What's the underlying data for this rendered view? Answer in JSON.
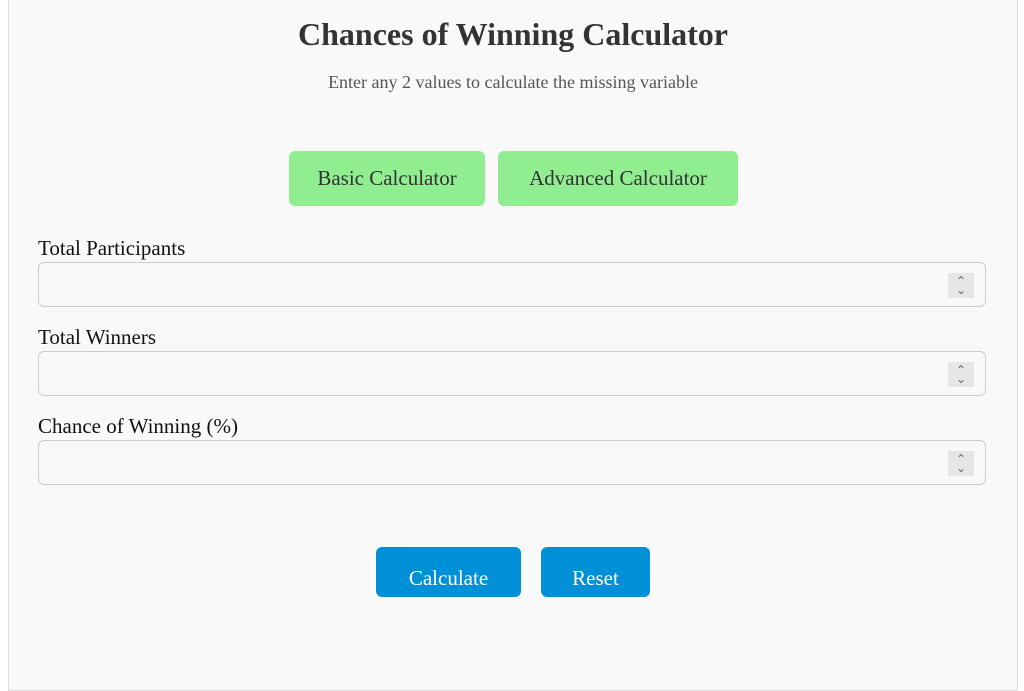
{
  "title": "Chances of Winning Calculator",
  "subtitle": "Enter any 2 values to calculate the missing variable",
  "tabs": [
    {
      "label": "Basic Calculator"
    },
    {
      "label": "Advanced Calculator"
    }
  ],
  "fields": [
    {
      "label": "Total Participants",
      "value": ""
    },
    {
      "label": "Total Winners",
      "value": ""
    },
    {
      "label": "Chance of Winning (%)",
      "value": ""
    }
  ],
  "actions": {
    "calculate": "Calculate",
    "reset": "Reset"
  },
  "colors": {
    "tab": "#90ee90",
    "action": "#0090d8"
  }
}
